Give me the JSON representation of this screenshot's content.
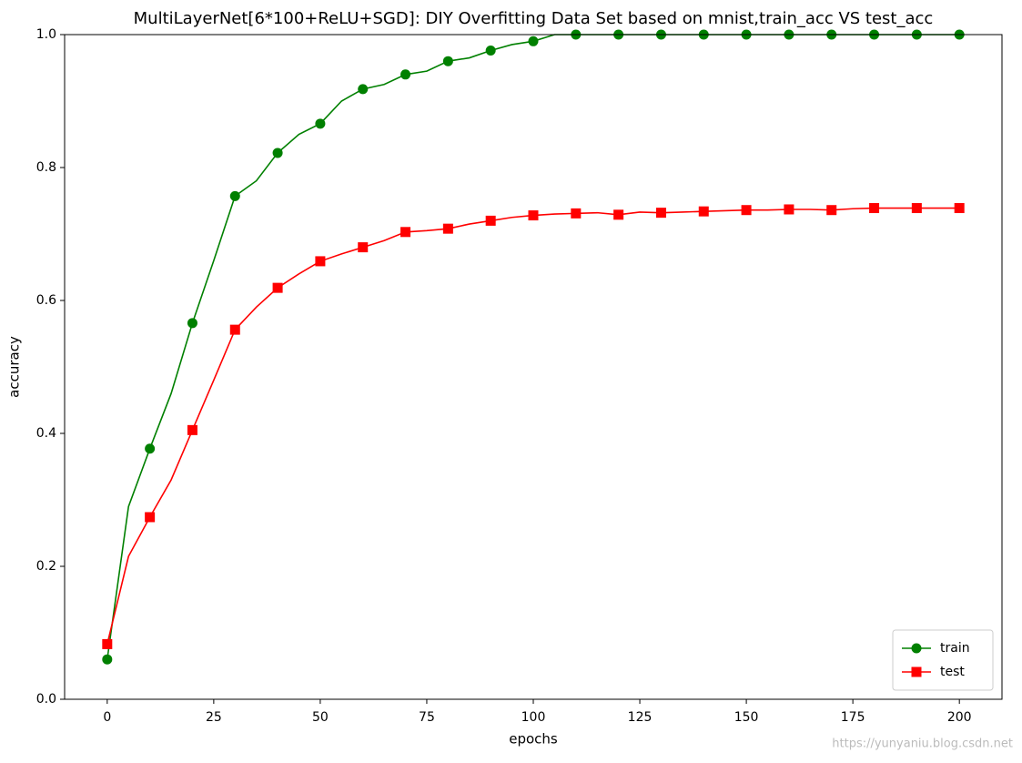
{
  "chart_data": {
    "type": "line",
    "title": "MultiLayerNet[6*100+ReLU+SGD]: DIY Overfitting Data Set based on mnist,train_acc VS test_acc",
    "x_label": "epochs",
    "y_label": "accuracy",
    "x": [
      0,
      5,
      10,
      15,
      20,
      25,
      30,
      35,
      40,
      45,
      50,
      55,
      60,
      65,
      70,
      75,
      80,
      85,
      90,
      95,
      100,
      105,
      110,
      115,
      120,
      125,
      130,
      135,
      140,
      145,
      150,
      155,
      160,
      165,
      170,
      175,
      180,
      185,
      190,
      195,
      200
    ],
    "marker_every": 10,
    "series": [
      {
        "name": "train",
        "color": "#008000",
        "marker": "circle",
        "values": [
          0.06,
          0.29,
          0.377,
          0.46,
          0.566,
          0.66,
          0.757,
          0.78,
          0.822,
          0.85,
          0.866,
          0.9,
          0.918,
          0.925,
          0.94,
          0.945,
          0.96,
          0.965,
          0.976,
          0.985,
          0.99,
          1.0,
          1.0,
          1.0,
          1.0,
          1.0,
          1.0,
          1.0,
          1.0,
          1.0,
          1.0,
          1.0,
          1.0,
          1.0,
          1.0,
          1.0,
          1.0,
          1.0,
          1.0,
          1.0,
          1.0
        ]
      },
      {
        "name": "test",
        "color": "#ff0000",
        "marker": "square",
        "values": [
          0.083,
          0.215,
          0.274,
          0.33,
          0.405,
          0.48,
          0.556,
          0.59,
          0.619,
          0.64,
          0.659,
          0.67,
          0.68,
          0.69,
          0.703,
          0.705,
          0.708,
          0.715,
          0.72,
          0.725,
          0.728,
          0.73,
          0.731,
          0.732,
          0.729,
          0.733,
          0.732,
          0.733,
          0.734,
          0.735,
          0.736,
          0.736,
          0.737,
          0.737,
          0.736,
          0.738,
          0.739,
          0.739,
          0.739,
          0.739,
          0.739
        ]
      }
    ],
    "xlim": [
      -10,
      210
    ],
    "ylim": [
      0,
      1
    ],
    "xticks": [
      0,
      25,
      50,
      75,
      100,
      125,
      150,
      175,
      200
    ],
    "yticks": [
      {
        "value": 0,
        "label": "0.0"
      },
      0.2,
      0.4,
      0.6,
      0.8,
      {
        "value": 1,
        "label": "1.0"
      }
    ],
    "legend": "lower right",
    "watermark": "https://yunyaniu.blog.csdn.net"
  }
}
